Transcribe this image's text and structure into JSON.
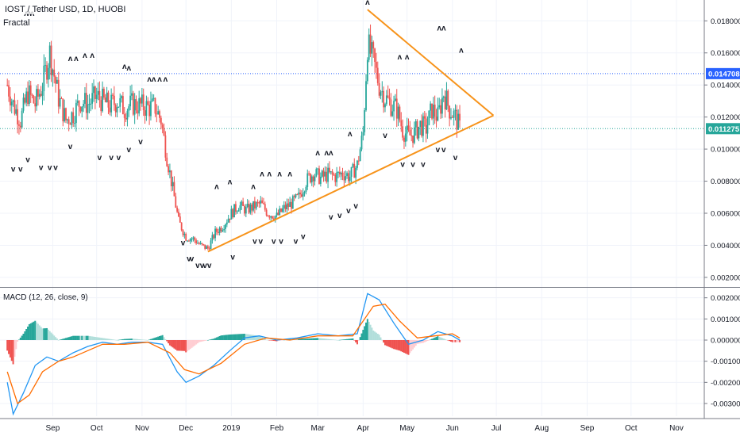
{
  "header": {
    "title": "IOST / Tether USD, 1D, HUOBI",
    "indicator_label": "Fractal",
    "macd_label": "MACD (12, 26, close, 9)"
  },
  "colors": {
    "up": "#26a69a",
    "down": "#ef5350",
    "trendline": "#f7931a",
    "hline1": "#2962ff",
    "hline2": "#26a69a",
    "macd_line": "#2196f3",
    "signal_line": "#ff6d00",
    "hist_up": "#26a69a",
    "hist_up_light": "#b2dfdb",
    "hist_down": "#ef5350",
    "hist_down_light": "#ffcdd2"
  },
  "chart_data": [
    {
      "type": "candlestick",
      "title": "IOST / Tether USD, 1D, HUOBI",
      "ylim": [
        0.0015,
        0.0193
      ],
      "yticks": [
        "0.002000",
        "0.004000",
        "0.006000",
        "0.008000",
        "0.010000",
        "0.012000",
        "0.014000",
        "0.016000",
        "0.018000"
      ],
      "price_labels": [
        {
          "value": "0.014708",
          "color": "#2962ff"
        },
        {
          "value": "0.011275",
          "color": "#26a69a"
        }
      ],
      "x_labels": [
        "Sep",
        "Oct",
        "Nov",
        "Dec",
        "2019",
        "Feb",
        "Mar",
        "Apr",
        "May",
        "Jun",
        "Jul",
        "Aug",
        "Sep",
        "Oct",
        "Nov"
      ],
      "trendlines": [
        {
          "from": [
            "2018-12-16",
            0.0036
          ],
          "to": [
            "2019-06-29",
            0.0121
          ]
        },
        {
          "from": [
            "2019-04-04",
            0.0187
          ],
          "to": [
            "2019-06-29",
            0.0121
          ]
        }
      ],
      "close_series": [
        {
          "date": "2018-08-01",
          "close": 0.014
        },
        {
          "date": "2018-08-05",
          "close": 0.0128
        },
        {
          "date": "2018-08-10",
          "close": 0.0118
        },
        {
          "date": "2018-08-15",
          "close": 0.0135
        },
        {
          "date": "2018-08-20",
          "close": 0.0128
        },
        {
          "date": "2018-08-25",
          "close": 0.014
        },
        {
          "date": "2018-08-30",
          "close": 0.016
        },
        {
          "date": "2018-09-05",
          "close": 0.0132
        },
        {
          "date": "2018-09-10",
          "close": 0.0118
        },
        {
          "date": "2018-09-15",
          "close": 0.0122
        },
        {
          "date": "2018-09-20",
          "close": 0.013
        },
        {
          "date": "2018-09-25",
          "close": 0.0128
        },
        {
          "date": "2018-10-01",
          "close": 0.0133
        },
        {
          "date": "2018-10-05",
          "close": 0.013
        },
        {
          "date": "2018-10-10",
          "close": 0.0127
        },
        {
          "date": "2018-10-15",
          "close": 0.013
        },
        {
          "date": "2018-10-20",
          "close": 0.0125
        },
        {
          "date": "2018-10-25",
          "close": 0.0128
        },
        {
          "date": "2018-11-01",
          "close": 0.0127
        },
        {
          "date": "2018-11-05",
          "close": 0.0126
        },
        {
          "date": "2018-11-10",
          "close": 0.0126
        },
        {
          "date": "2018-11-14",
          "close": 0.0118
        },
        {
          "date": "2018-11-18",
          "close": 0.0095
        },
        {
          "date": "2018-11-22",
          "close": 0.0075
        },
        {
          "date": "2018-11-26",
          "close": 0.0055
        },
        {
          "date": "2018-12-01",
          "close": 0.0045
        },
        {
          "date": "2018-12-06",
          "close": 0.0044
        },
        {
          "date": "2018-12-11",
          "close": 0.004
        },
        {
          "date": "2018-12-16",
          "close": 0.0038
        },
        {
          "date": "2018-12-21",
          "close": 0.0048
        },
        {
          "date": "2018-12-26",
          "close": 0.0052
        },
        {
          "date": "2019-01-01",
          "close": 0.006
        },
        {
          "date": "2019-01-06",
          "close": 0.0065
        },
        {
          "date": "2019-01-11",
          "close": 0.0062
        },
        {
          "date": "2019-01-16",
          "close": 0.0064
        },
        {
          "date": "2019-01-21",
          "close": 0.0066
        },
        {
          "date": "2019-01-26",
          "close": 0.006
        },
        {
          "date": "2019-02-01",
          "close": 0.0058
        },
        {
          "date": "2019-02-06",
          "close": 0.0063
        },
        {
          "date": "2019-02-11",
          "close": 0.0066
        },
        {
          "date": "2019-02-16",
          "close": 0.007
        },
        {
          "date": "2019-02-21",
          "close": 0.008
        },
        {
          "date": "2019-02-26",
          "close": 0.0085
        },
        {
          "date": "2019-03-03",
          "close": 0.0082
        },
        {
          "date": "2019-03-08",
          "close": 0.0084
        },
        {
          "date": "2019-03-13",
          "close": 0.0083
        },
        {
          "date": "2019-03-18",
          "close": 0.0085
        },
        {
          "date": "2019-03-23",
          "close": 0.0083
        },
        {
          "date": "2019-03-28",
          "close": 0.009
        },
        {
          "date": "2019-04-01",
          "close": 0.011
        },
        {
          "date": "2019-04-04",
          "close": 0.0165
        },
        {
          "date": "2019-04-08",
          "close": 0.0155
        },
        {
          "date": "2019-04-12",
          "close": 0.014
        },
        {
          "date": "2019-04-16",
          "close": 0.0132
        },
        {
          "date": "2019-04-20",
          "close": 0.0128
        },
        {
          "date": "2019-04-24",
          "close": 0.0125
        },
        {
          "date": "2019-04-28",
          "close": 0.0112
        },
        {
          "date": "2019-05-02",
          "close": 0.0108
        },
        {
          "date": "2019-05-06",
          "close": 0.011
        },
        {
          "date": "2019-05-10",
          "close": 0.0115
        },
        {
          "date": "2019-05-14",
          "close": 0.0113
        },
        {
          "date": "2019-05-18",
          "close": 0.0125
        },
        {
          "date": "2019-05-22",
          "close": 0.012
        },
        {
          "date": "2019-05-26",
          "close": 0.0135
        },
        {
          "date": "2019-05-30",
          "close": 0.0125
        },
        {
          "date": "2019-06-03",
          "close": 0.012
        },
        {
          "date": "2019-06-06",
          "close": 0.0113
        }
      ]
    },
    {
      "type": "line",
      "title": "MACD (12, 26, close, 9)",
      "ylim": [
        -0.0036,
        0.0024
      ],
      "yticks": [
        "0.002000",
        "0.001000",
        "0.000000",
        "-0.001000",
        "-0.002000",
        "-0.003000"
      ],
      "series": [
        {
          "name": "MACD",
          "points": [
            {
              "date": "2018-08-01",
              "value": -0.002
            },
            {
              "date": "2018-08-05",
              "value": -0.0035
            },
            {
              "date": "2018-08-12",
              "value": -0.0025
            },
            {
              "date": "2018-08-20",
              "value": -0.0012
            },
            {
              "date": "2018-08-28",
              "value": -0.0008
            },
            {
              "date": "2018-09-05",
              "value": -0.001
            },
            {
              "date": "2018-09-15",
              "value": -0.0006
            },
            {
              "date": "2018-09-25",
              "value": -0.0003
            },
            {
              "date": "2018-10-05",
              "value": -0.0001
            },
            {
              "date": "2018-10-15",
              "value": -0.0002
            },
            {
              "date": "2018-10-25",
              "value": -0.0001
            },
            {
              "date": "2018-11-05",
              "value": -0.0001
            },
            {
              "date": "2018-11-15",
              "value": -0.0002
            },
            {
              "date": "2018-11-25",
              "value": -0.0015
            },
            {
              "date": "2018-12-01",
              "value": -0.002
            },
            {
              "date": "2018-12-10",
              "value": -0.0017
            },
            {
              "date": "2018-12-20",
              "value": -0.0012
            },
            {
              "date": "2018-12-31",
              "value": -0.0005
            },
            {
              "date": "2019-01-10",
              "value": 0.0001
            },
            {
              "date": "2019-01-20",
              "value": 0.0002
            },
            {
              "date": "2019-02-01",
              "value": 0.0
            },
            {
              "date": "2019-02-15",
              "value": 0.0001
            },
            {
              "date": "2019-03-01",
              "value": 0.0003
            },
            {
              "date": "2019-03-15",
              "value": 0.0002
            },
            {
              "date": "2019-03-28",
              "value": 0.0003
            },
            {
              "date": "2019-04-04",
              "value": 0.0022
            },
            {
              "date": "2019-04-12",
              "value": 0.0019
            },
            {
              "date": "2019-04-22",
              "value": 0.0008
            },
            {
              "date": "2019-05-02",
              "value": -0.0002
            },
            {
              "date": "2019-05-12",
              "value": 0.0
            },
            {
              "date": "2019-05-22",
              "value": 0.0004
            },
            {
              "date": "2019-06-01",
              "value": 0.0002
            },
            {
              "date": "2019-06-06",
              "value": 0.0
            }
          ]
        },
        {
          "name": "Signal",
          "points": [
            {
              "date": "2018-08-01",
              "value": -0.0015
            },
            {
              "date": "2018-08-08",
              "value": -0.003
            },
            {
              "date": "2018-08-16",
              "value": -0.0026
            },
            {
              "date": "2018-08-25",
              "value": -0.0015
            },
            {
              "date": "2018-09-05",
              "value": -0.001
            },
            {
              "date": "2018-09-15",
              "value": -0.0008
            },
            {
              "date": "2018-09-25",
              "value": -0.0005
            },
            {
              "date": "2018-10-05",
              "value": -0.0002
            },
            {
              "date": "2018-10-20",
              "value": -0.0002
            },
            {
              "date": "2018-11-05",
              "value": -0.0001
            },
            {
              "date": "2018-11-20",
              "value": -0.0006
            },
            {
              "date": "2018-11-30",
              "value": -0.0014
            },
            {
              "date": "2018-12-10",
              "value": -0.0016
            },
            {
              "date": "2018-12-25",
              "value": -0.0011
            },
            {
              "date": "2019-01-10",
              "value": -0.0002
            },
            {
              "date": "2019-01-25",
              "value": 0.0001
            },
            {
              "date": "2019-02-10",
              "value": 0.0
            },
            {
              "date": "2019-03-01",
              "value": 0.0002
            },
            {
              "date": "2019-03-25",
              "value": 0.0002
            },
            {
              "date": "2019-04-08",
              "value": 0.0016
            },
            {
              "date": "2019-04-16",
              "value": 0.0017
            },
            {
              "date": "2019-04-26",
              "value": 0.0009
            },
            {
              "date": "2019-05-08",
              "value": 0.0001
            },
            {
              "date": "2019-05-20",
              "value": 0.0002
            },
            {
              "date": "2019-06-01",
              "value": 0.0003
            },
            {
              "date": "2019-06-06",
              "value": 0.0001
            }
          ]
        }
      ]
    }
  ]
}
